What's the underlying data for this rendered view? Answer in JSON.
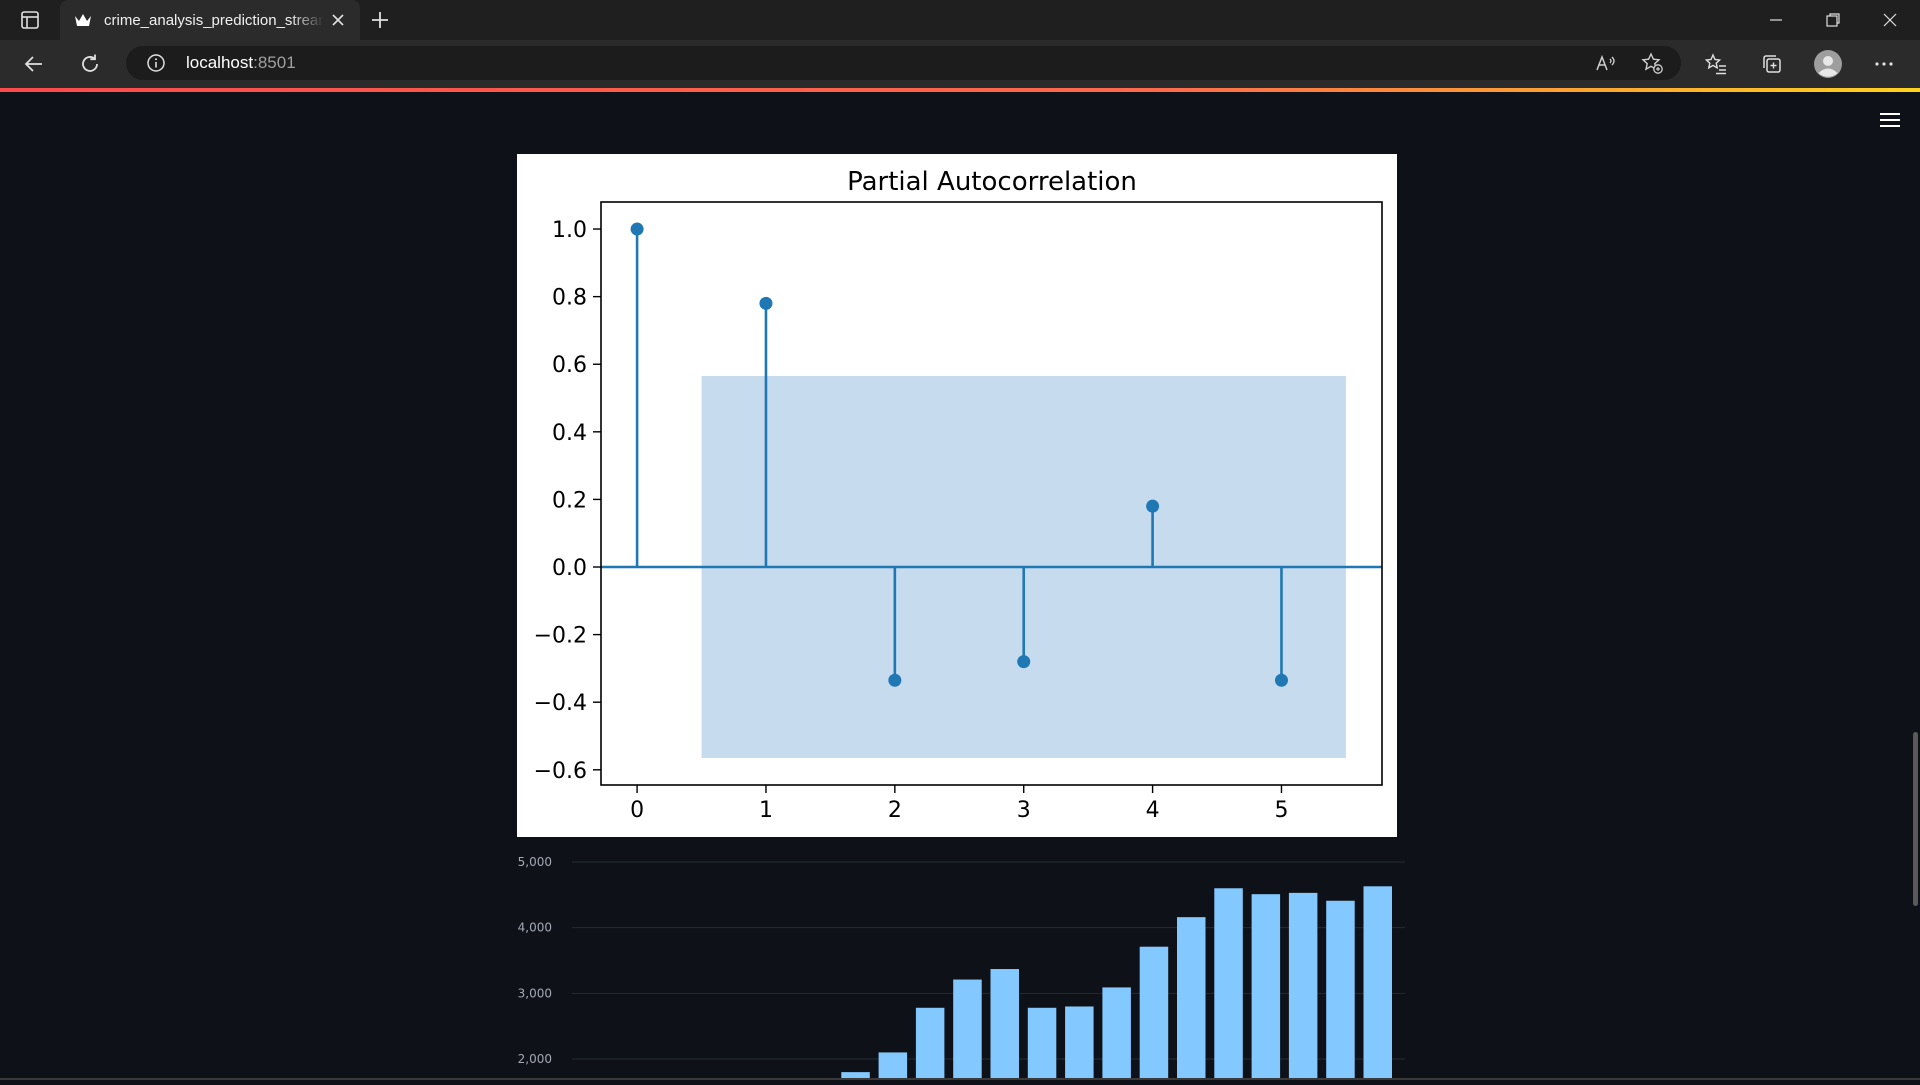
{
  "browser": {
    "tab_title": "crime_analysis_prediction_streamlit",
    "url_host": "localhost",
    "url_port": ":8501"
  },
  "icons": {
    "tab_actions": "tab-actions-icon",
    "favicon": "streamlit-crown-icon",
    "tab_close": "close-icon",
    "new_tab": "plus-icon",
    "minimize": "minimize-icon",
    "restore": "restore-icon",
    "close_window": "close-icon",
    "back": "back-arrow-icon",
    "refresh": "refresh-icon",
    "site_info": "info-icon",
    "read_aloud": "read-aloud-icon",
    "add_favorite": "star-add-icon",
    "favorites": "favorites-list-icon",
    "collections": "collections-icon",
    "profile": "profile-avatar-icon",
    "more": "more-dots-icon",
    "app_menu": "hamburger-menu-icon"
  },
  "colors": {
    "app_background": "#0e1117",
    "stem": "#1f77b4",
    "confidence_band": "#c6dbee",
    "bar": "#83c9ff",
    "loading_bar_start": "#ff4b4b",
    "loading_bar_end": "#ffd21f"
  },
  "chart_data": [
    {
      "type": "scatter",
      "subtype": "stem",
      "title": "Partial Autocorrelation",
      "xlabel": "",
      "ylabel": "",
      "x": [
        0,
        1,
        2,
        3,
        4,
        5
      ],
      "values": [
        1.0,
        0.78,
        -0.335,
        -0.28,
        0.18,
        -0.335
      ],
      "confidence_interval": {
        "lower": -0.565,
        "upper": 0.565,
        "x_from": 0.5,
        "x_to": 5.5
      },
      "xlim": [
        -0.28,
        5.78
      ],
      "ylim": [
        -0.645,
        1.08
      ],
      "x_ticks": [
        "0",
        "1",
        "2",
        "3",
        "4",
        "5"
      ],
      "y_ticks": [
        1.0,
        0.8,
        0.6,
        0.4,
        0.2,
        0.0,
        -0.2,
        -0.4,
        -0.6
      ],
      "y_tick_labels": [
        "1.0",
        "0.8",
        "0.6",
        "0.4",
        "0.2",
        "0.0",
        "−0.2",
        "−0.4",
        "−0.6"
      ],
      "grid": false
    },
    {
      "type": "bar",
      "title": "",
      "xlabel": "",
      "ylabel": "",
      "values": [
        1800,
        2100,
        2780,
        3210,
        3370,
        2780,
        2800,
        3090,
        3710,
        4160,
        4600,
        4510,
        4530,
        4410,
        4630
      ],
      "y_ticks": [
        5000,
        4000,
        3000,
        2000
      ],
      "y_tick_labels": [
        "5,000",
        "4,000",
        "3,000",
        "2,000"
      ],
      "ylim_visible": [
        1700,
        5000
      ],
      "grid": true
    }
  ]
}
